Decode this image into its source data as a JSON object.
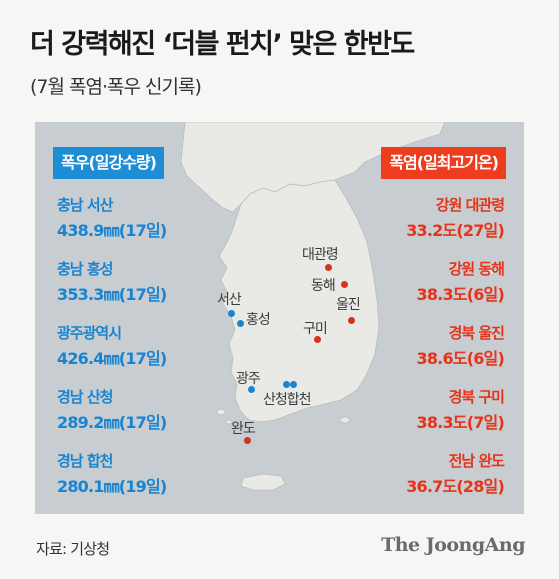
{
  "title": "더 강력해진 ‘더블 펀치’ 맞은 한반도",
  "subtitle": "(7월 폭염·폭우 신기록)",
  "rain": {
    "label": "폭우(일강수량)",
    "items": [
      {
        "place": "충남 서산",
        "value": "438.9㎜(17일)"
      },
      {
        "place": "충남 홍성",
        "value": "353.3㎜(17일)"
      },
      {
        "place": "광주광역시",
        "value": "426.4㎜(17일)"
      },
      {
        "place": "경남 산청",
        "value": "289.2㎜(17일)"
      },
      {
        "place": "경남 합천",
        "value": "280.1㎜(19일)"
      }
    ]
  },
  "heat": {
    "label": "폭염(일최고기온)",
    "items": [
      {
        "place": "강원 대관령",
        "value": "33.2도(27일)"
      },
      {
        "place": "강원 동해",
        "value": "38.3도(6일)"
      },
      {
        "place": "경북 울진",
        "value": "38.6도(6일)"
      },
      {
        "place": "경북 구미",
        "value": "38.3도(7일)"
      },
      {
        "place": "전남 완도",
        "value": "36.7도(28일)"
      }
    ]
  },
  "map_labels": {
    "daegwallyeong": "대관령",
    "donghae": "동해",
    "uljin": "울진",
    "gumi": "구미",
    "seosan": "서산",
    "hongseong": "홍성",
    "gwangju": "광주",
    "sancheong_hapcheon": "산청합천",
    "wando": "완도"
  },
  "colors": {
    "rain": "#1a84cf",
    "heat": "#e5341a",
    "sea": "#c8cdd2",
    "land": "#e9e9e6"
  },
  "source": "자료: 기상청",
  "brand": "The JoongAng"
}
